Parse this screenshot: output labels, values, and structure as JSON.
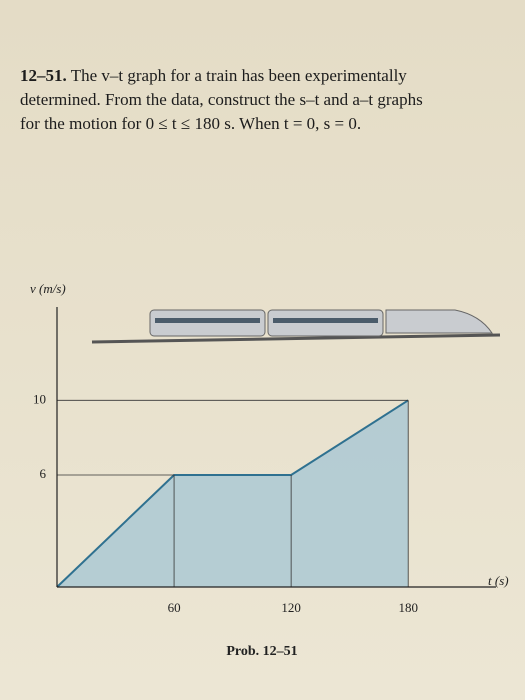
{
  "problem": {
    "number": "12–51.",
    "lines": [
      "The v–t graph for a train has been experimentally",
      "determined. From the data, construct the s–t and a–t graphs",
      "for the motion for 0 ≤ t ≤ 180 s. When t = 0, s = 0."
    ]
  },
  "chart_data": {
    "type": "line",
    "x_label": "t (s)",
    "y_label": "v (m/s)",
    "caption": "Prob. 12–51",
    "x": [
      0,
      60,
      120,
      180
    ],
    "values": [
      0,
      6,
      6,
      10
    ],
    "color": "#2f7190",
    "fill": "#a7c7d3",
    "xlim": [
      0,
      225
    ],
    "ylim": [
      0,
      15
    ],
    "xticks": [
      60,
      120,
      180
    ],
    "yticks": [
      6,
      10
    ],
    "guides": true
  }
}
